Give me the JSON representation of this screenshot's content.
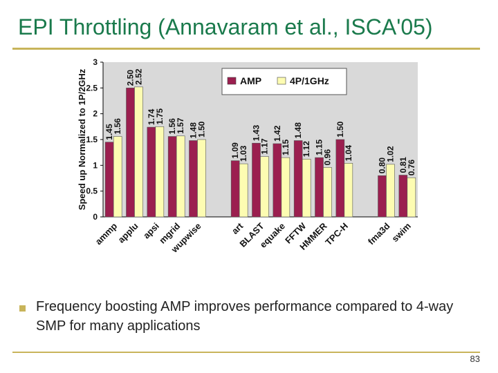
{
  "slide": {
    "title": "EPI Throttling (Annavaram et al., ISCA'05)",
    "bullet": "Frequency boosting AMP improves performance compared to 4-way SMP for many applications",
    "page_number": "83"
  },
  "colors": {
    "amp": "#9b1f4f",
    "smp": "#fdfcb2",
    "title": "#1a7a4c",
    "rule": "#c8b45a",
    "plot_bg": "#d9d9d9"
  },
  "chart_data": {
    "type": "bar",
    "title": "",
    "ylabel": "Speed up Normalized to 1P/2GHz",
    "xlabel": "",
    "ylim": [
      0,
      3
    ],
    "yticks": [
      "0",
      "0.5",
      "1",
      "1.5",
      "2",
      "2.5",
      "3"
    ],
    "grid": false,
    "legend_position": "top-right",
    "categories": [
      "ammp",
      "applu",
      "apsi",
      "mgrid",
      "wupwise",
      "",
      "art",
      "BLAST",
      "equake",
      "FFTW",
      "HMMER",
      "TPC-H",
      "",
      "fma3d",
      "swim"
    ],
    "series": [
      {
        "name": "AMP",
        "values": [
          1.45,
          2.5,
          1.74,
          1.56,
          1.48,
          null,
          1.09,
          1.43,
          1.42,
          1.48,
          1.15,
          1.5,
          null,
          0.8,
          0.81
        ],
        "labels": [
          "1.45",
          "2.50",
          "1.74",
          "1.56",
          "1.48",
          "",
          "1.09",
          "1.43",
          "1.42",
          "1.48",
          "1.15",
          "1.50",
          "",
          "0.80",
          "0.81"
        ]
      },
      {
        "name": "4P/1GHz",
        "values": [
          1.56,
          2.52,
          1.75,
          1.57,
          1.5,
          null,
          1.03,
          1.17,
          1.15,
          1.12,
          0.96,
          1.04,
          null,
          1.02,
          0.76
        ],
        "labels": [
          "1.56",
          "2.52",
          "1.75",
          "1.57",
          "1.50",
          "",
          "1.03",
          "1.17",
          "1.15",
          "1.12",
          "0.96",
          "1.04",
          "",
          "1.02",
          "0.76"
        ]
      }
    ]
  }
}
